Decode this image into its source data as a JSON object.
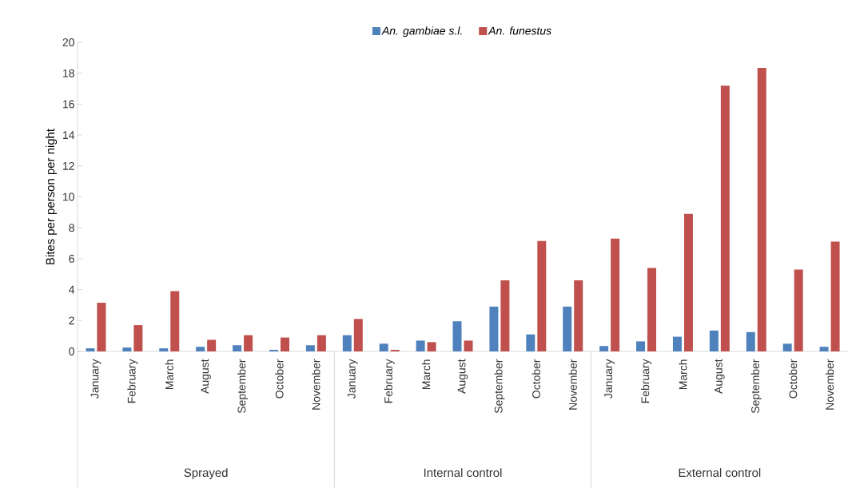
{
  "chart_data": {
    "type": "bar",
    "ylabel": "Bites per person per night",
    "categories": [
      "January",
      "February",
      "March",
      "August",
      "September",
      "October",
      "November",
      "January",
      "February",
      "March",
      "August",
      "September",
      "October",
      "November",
      "January",
      "February",
      "March",
      "August",
      "September",
      "October",
      "November"
    ],
    "series": [
      {
        "name": "An. gambiae s.l.",
        "color": "#4f81bd",
        "values": [
          0.2,
          0.25,
          0.2,
          0.3,
          0.4,
          0.1,
          0.4,
          1.05,
          0.5,
          0.7,
          1.95,
          2.9,
          1.1,
          2.9,
          0.35,
          0.65,
          0.95,
          1.35,
          1.25,
          0.5,
          0.3
        ]
      },
      {
        "name": "An. funestus",
        "color": "#c0504d",
        "values": [
          3.15,
          1.7,
          3.9,
          0.75,
          1.05,
          0.9,
          1.05,
          2.1,
          0.1,
          0.6,
          0.7,
          4.6,
          7.15,
          4.6,
          7.3,
          5.4,
          8.9,
          17.2,
          18.35,
          5.3,
          7.1
        ]
      }
    ],
    "annotations": [
      "Sprayed",
      "Internal control",
      "External control"
    ],
    "ylim": [
      0,
      20
    ],
    "yticks": [
      0,
      2,
      4,
      6,
      8,
      10,
      12,
      14,
      16,
      18,
      20
    ],
    "legend": "top"
  }
}
